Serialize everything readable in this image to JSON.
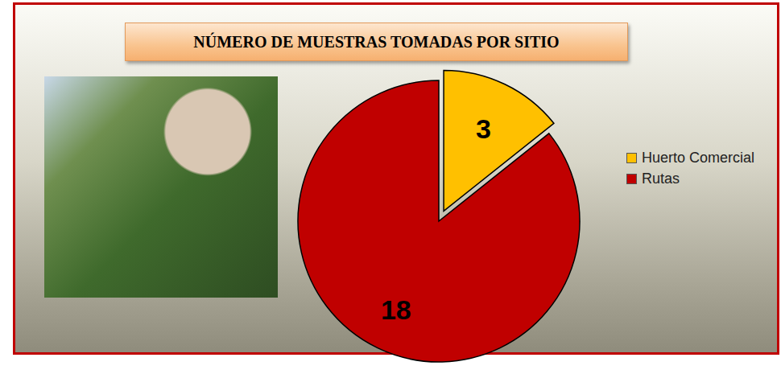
{
  "chart_data": {
    "type": "pie",
    "title": "NÚMERO DE MUESTRAS TOMADAS POR SITIO",
    "categories": [
      "Huerto Comercial",
      "Rutas"
    ],
    "values": [
      3,
      18
    ],
    "colors": [
      "#FFC000",
      "#C00000"
    ],
    "legend": "right",
    "data_labels": true
  }
}
